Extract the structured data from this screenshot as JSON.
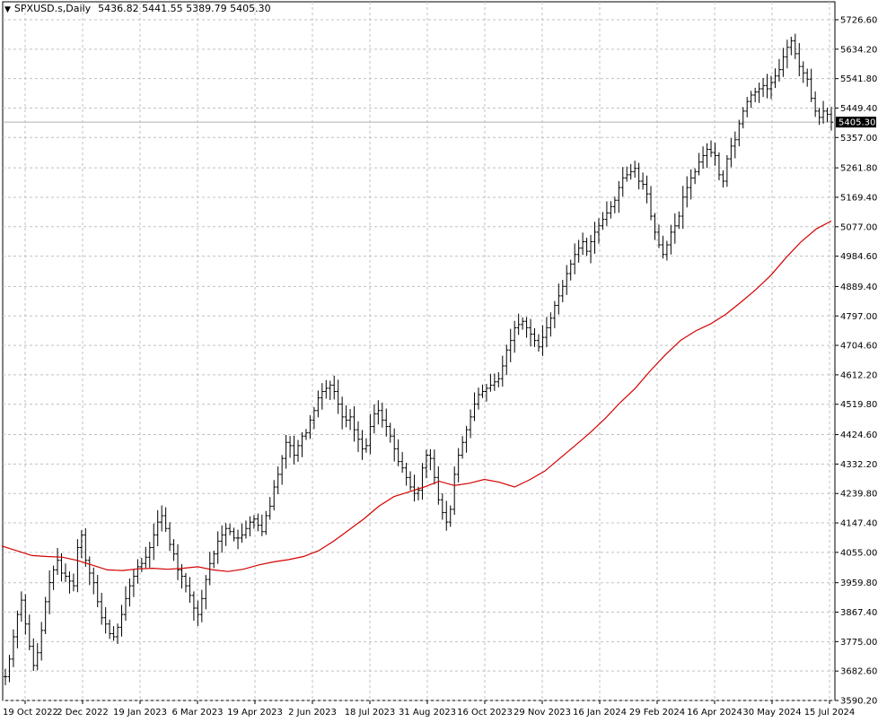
{
  "header": {
    "symbol": "SPXUSD.s,Daily",
    "ohlc": "5436.82 5441.55 5389.79 5405.30"
  },
  "colors": {
    "ma": "#d40000",
    "bars": "#000000",
    "grid": "#c0c0c0",
    "current_label_bg": "#000000",
    "current_label_text": "#ffffff",
    "current_line": "#b0b0b0"
  },
  "chart_data": {
    "type": "line",
    "ohlc_bars": true,
    "grid": true,
    "ylim": [
      3590.2,
      5726.6
    ],
    "y_ticks": [
      "5726.60",
      "5634.20",
      "5541.80",
      "5449.40",
      "5357.00",
      "5261.80",
      "5169.40",
      "5077.00",
      "4984.60",
      "4889.40",
      "4797.00",
      "4704.60",
      "4612.20",
      "4519.80",
      "4424.60",
      "4332.20",
      "4239.80",
      "4147.40",
      "4055.00",
      "3959.80",
      "3867.40",
      "3775.00",
      "3682.60",
      "3590.20"
    ],
    "x_ticks": [
      "19 Oct 2022",
      "2 Dec 2022",
      "19 Jan 2023",
      "6 Mar 2023",
      "19 Apr 2023",
      "2 Jun 2023",
      "18 Jul 2023",
      "31 Aug 2023",
      "16 Oct 2023",
      "29 Nov 2023",
      "16 Jan 2024",
      "29 Feb 2024",
      "16 Apr 2024",
      "30 May 2024",
      "15 Jul 2024"
    ],
    "current_price": "5405.30",
    "series": [
      {
        "kind": "close",
        "values": [
          3665,
          3720,
          3790,
          3860,
          3905,
          3830,
          3760,
          3700,
          3740,
          3810,
          3900,
          3960,
          4000,
          4030,
          3990,
          3980,
          3965,
          3950,
          4070,
          4110,
          4030,
          3990,
          3960,
          3900,
          3850,
          3830,
          3800,
          3790,
          3820,
          3860,
          3910,
          3950,
          3980,
          4010,
          4020,
          4040,
          4070,
          4110,
          4150,
          4170,
          4130,
          4080,
          4050,
          4000,
          3980,
          3950,
          3920,
          3880,
          3860,
          3910,
          3970,
          4020,
          4050,
          4090,
          4110,
          4130,
          4120,
          4100,
          4100,
          4110,
          4130,
          4150,
          4160,
          4140,
          4120,
          4170,
          4200,
          4260,
          4300,
          4350,
          4400,
          4390,
          4360,
          4390,
          4420,
          4430,
          4470,
          4500,
          4540,
          4560,
          4570,
          4580,
          4560,
          4520,
          4480,
          4470,
          4480,
          4440,
          4410,
          4380,
          4390,
          4450,
          4490,
          4500,
          4470,
          4450,
          4420,
          4380,
          4340,
          4320,
          4290,
          4260,
          4240,
          4250,
          4320,
          4360,
          4350,
          4290,
          4220,
          4180,
          4150,
          4190,
          4300,
          4360,
          4400,
          4440,
          4480,
          4520,
          4550,
          4560,
          4570,
          4580,
          4590,
          4600,
          4640,
          4690,
          4720,
          4760,
          4770,
          4780,
          4760,
          4740,
          4720,
          4700,
          4730,
          4760,
          4790,
          4830,
          4860,
          4890,
          4930,
          4960,
          4990,
          5010,
          5030,
          5000,
          5030,
          5060,
          5080,
          5100,
          5120,
          5140,
          5160,
          5200,
          5230,
          5240,
          5250,
          5260,
          5220,
          5210,
          5180,
          5110,
          5060,
          5020,
          4990,
          5020,
          5060,
          5080,
          5110,
          5170,
          5200,
          5230,
          5250,
          5280,
          5300,
          5320,
          5310,
          5300,
          5240,
          5220,
          5290,
          5330,
          5350,
          5400,
          5440,
          5470,
          5490,
          5500,
          5510,
          5520,
          5510,
          5530,
          5550,
          5570,
          5610,
          5640,
          5660,
          5620,
          5580,
          5560,
          5540,
          5480,
          5440,
          5420,
          5440,
          5430,
          5405
        ]
      },
      {
        "kind": "moving_average",
        "values": [
          4075,
          4060,
          4045,
          4042,
          4040,
          4030,
          4015,
          4000,
          3998,
          4003,
          4005,
          4002,
          4005,
          4010,
          4000,
          3995,
          4002,
          4015,
          4025,
          4032,
          4042,
          4060,
          4090,
          4125,
          4160,
          4200,
          4230,
          4245,
          4260,
          4278,
          4265,
          4272,
          4284,
          4275,
          4260,
          4283,
          4310,
          4350,
          4390,
          4430,
          4475,
          4525,
          4570,
          4625,
          4675,
          4720,
          4750,
          4772,
          4802,
          4840,
          4880,
          4925,
          4980,
          5030,
          5070,
          5095
        ]
      }
    ]
  }
}
